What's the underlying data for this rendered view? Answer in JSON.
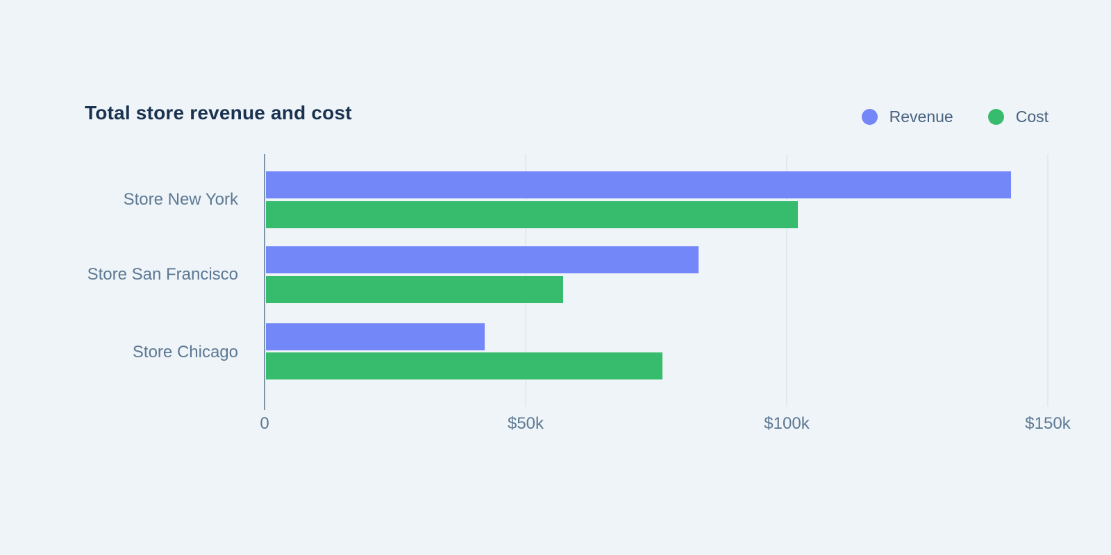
{
  "theme": {
    "background": "#eff4f8",
    "title_color": "#19324f",
    "label_color": "#5c7893",
    "legend_text_color": "#47617e",
    "axis_line_color": "#7e94a9",
    "gridline_color": "#e2e9f0"
  },
  "chart_data": {
    "type": "bar",
    "orientation": "horizontal",
    "title": "Total store revenue and cost",
    "categories": [
      "Store New York",
      "Store San Francisco",
      "Store Chicago"
    ],
    "series": [
      {
        "name": "Revenue",
        "color": "#7487f8",
        "values": [
          143000,
          83000,
          42000
        ]
      },
      {
        "name": "Cost",
        "color": "#37bc6d",
        "values": [
          102000,
          57000,
          76000
        ]
      }
    ],
    "x_axis": {
      "min": 0,
      "max": 150000,
      "ticks": [
        {
          "value": 0,
          "label": "0"
        },
        {
          "value": 50000,
          "label": "$50k"
        },
        {
          "value": 100000,
          "label": "$100k"
        },
        {
          "value": 150000,
          "label": "$150k"
        }
      ]
    },
    "legend_position": "top-right",
    "grid": true
  }
}
